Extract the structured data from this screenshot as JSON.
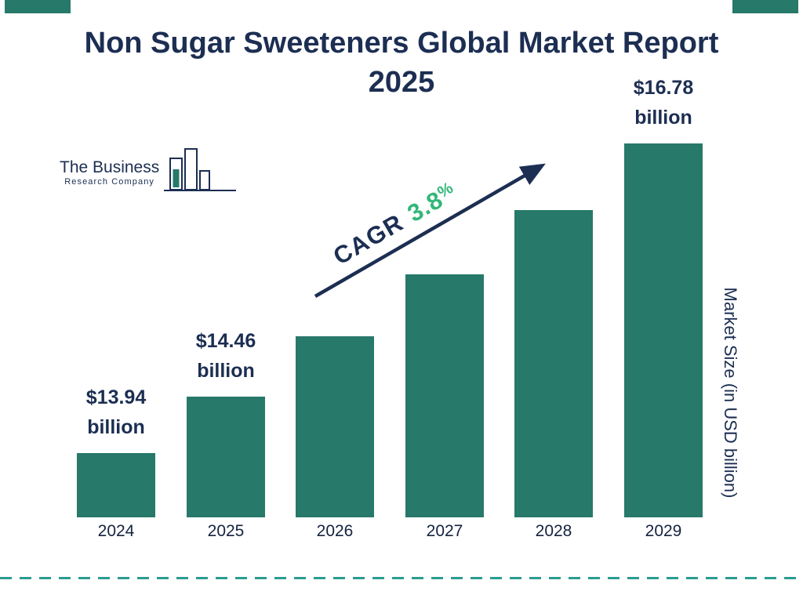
{
  "page": {
    "title": "Non Sugar Sweeteners Global Market Report 2025"
  },
  "logo": {
    "line1": "The Business",
    "line2": "Research Company"
  },
  "cagr": {
    "label": "CAGR",
    "value": "3.8",
    "percent": "%"
  },
  "y_axis_label": "Market Size (in USD billion)",
  "colors": {
    "bar_teal": "#27796a",
    "navy": "#1c2e52",
    "cagr_green": "#33b778",
    "divider_teal": "#2b9c90"
  },
  "chart_data": {
    "type": "bar",
    "title": "Non Sugar Sweeteners Global Market Report 2025",
    "categories": [
      "2024",
      "2025",
      "2026",
      "2027",
      "2028",
      "2029"
    ],
    "values": [
      13.94,
      14.46,
      15.01,
      15.58,
      16.17,
      16.78
    ],
    "unit": "USD billion",
    "xlabel": "",
    "ylabel": "Market Size (in USD billion)",
    "cagr_percent": 3.8,
    "axis_min": 13.35,
    "axis_max": 16.78,
    "grid": false,
    "legend_position": "none",
    "value_labels": [
      {
        "line1": "$13.94",
        "line2": "billion"
      },
      {
        "line1": "$14.46",
        "line2": "billion"
      },
      null,
      null,
      null,
      {
        "line1": "$16.78",
        "line2": "billion"
      }
    ]
  }
}
